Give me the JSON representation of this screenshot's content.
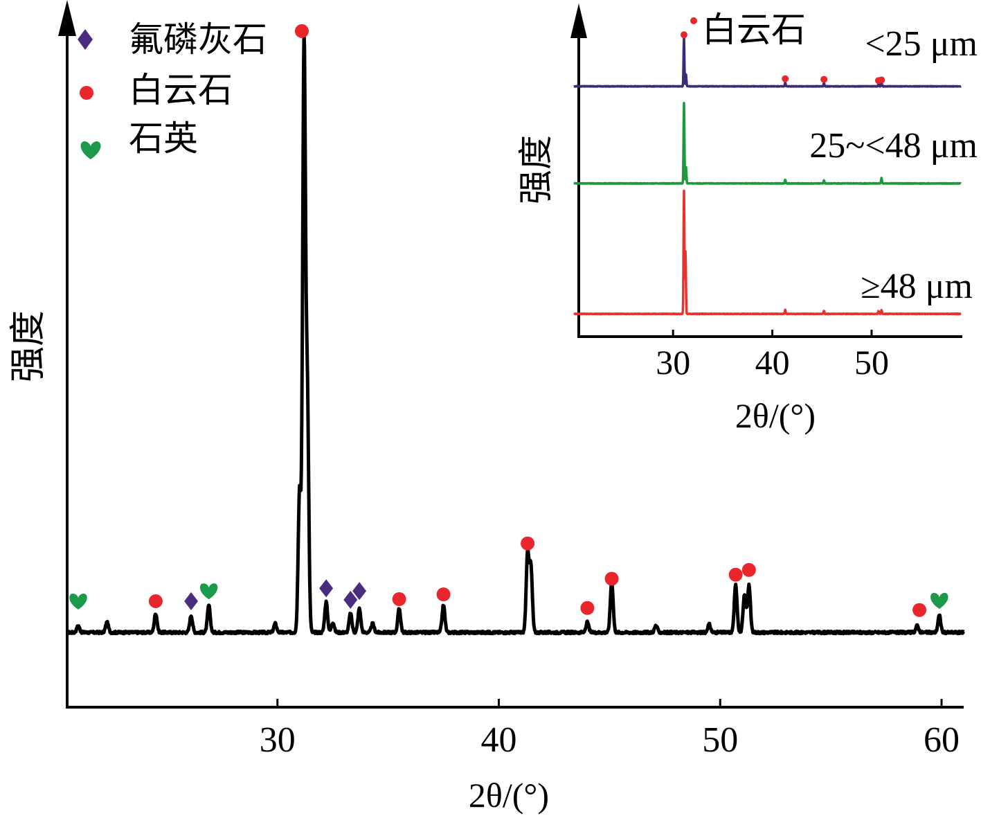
{
  "colors": {
    "axis": "#000000",
    "main_line": "#000000",
    "fluorapatite": "#4b2d7f",
    "dolomite": "#e8262c",
    "quartz": "#1a9a4a",
    "inset_lt25": "#3c2a7a",
    "inset_25_48": "#1a9a3a",
    "inset_ge48": "#e8322c"
  },
  "chart_data": [
    {
      "type": "line",
      "xlabel": "2θ/(°)",
      "ylabel": "强度",
      "xlim": [
        20.5,
        61
      ],
      "ylim": [
        0,
        100
      ],
      "x_ticks": [
        30,
        40,
        50,
        60
      ],
      "x_tick_labels": [
        "30",
        "40",
        "50",
        "60"
      ],
      "legend_position": "top-left",
      "legend": [
        {
          "name": "氟磷灰石",
          "marker": "diamond",
          "color": "#4b2d7f",
          "icon": "diamond-icon"
        },
        {
          "name": "白云石",
          "marker": "circle",
          "color": "#e8262c",
          "icon": "circle-icon"
        },
        {
          "name": "石英",
          "marker": "heart",
          "color": "#1a9a4a",
          "icon": "heart-icon"
        }
      ],
      "baseline": 11,
      "peaks": [
        {
          "x": 21.0,
          "y": 12.0
        },
        {
          "x": 22.3,
          "y": 12.5
        },
        {
          "x": 24.5,
          "y": 13.8
        },
        {
          "x": 26.1,
          "y": 13.5
        },
        {
          "x": 26.9,
          "y": 15.0
        },
        {
          "x": 29.9,
          "y": 12.3
        },
        {
          "x": 31.0,
          "y": 32.0
        },
        {
          "x": 31.2,
          "y": 97.0
        },
        {
          "x": 31.35,
          "y": 45.0
        },
        {
          "x": 32.2,
          "y": 15.5
        },
        {
          "x": 32.5,
          "y": 12.5
        },
        {
          "x": 33.3,
          "y": 13.8
        },
        {
          "x": 33.7,
          "y": 14.5
        },
        {
          "x": 34.3,
          "y": 12.3
        },
        {
          "x": 35.5,
          "y": 14.5
        },
        {
          "x": 37.5,
          "y": 15.0
        },
        {
          "x": 41.3,
          "y": 22.5
        },
        {
          "x": 41.45,
          "y": 20.5
        },
        {
          "x": 44.0,
          "y": 12.5
        },
        {
          "x": 45.1,
          "y": 18.5
        },
        {
          "x": 47.1,
          "y": 12.0
        },
        {
          "x": 49.5,
          "y": 12.2
        },
        {
          "x": 50.7,
          "y": 18.0
        },
        {
          "x": 51.1,
          "y": 16.5
        },
        {
          "x": 51.3,
          "y": 18.0
        },
        {
          "x": 58.9,
          "y": 12.0
        },
        {
          "x": 59.9,
          "y": 13.5
        }
      ],
      "markers": [
        {
          "phase": "石英",
          "shape": "heart",
          "x": 21.0,
          "y": 15.5
        },
        {
          "phase": "白云石",
          "shape": "circle",
          "x": 24.5,
          "y": 15.6
        },
        {
          "phase": "氟磷灰石",
          "shape": "diamond",
          "x": 26.1,
          "y": 15.6
        },
        {
          "phase": "石英",
          "shape": "heart",
          "x": 26.9,
          "y": 17.0
        },
        {
          "phase": "白云石",
          "shape": "circle",
          "x": 31.1,
          "y": 99.5
        },
        {
          "phase": "氟磷灰石",
          "shape": "diamond",
          "x": 32.2,
          "y": 17.5
        },
        {
          "phase": "氟磷灰石",
          "shape": "diamond",
          "x": 33.3,
          "y": 15.8
        },
        {
          "phase": "氟磷灰石",
          "shape": "diamond",
          "x": 33.7,
          "y": 17.1
        },
        {
          "phase": "白云石",
          "shape": "circle",
          "x": 35.5,
          "y": 15.9
        },
        {
          "phase": "白云石",
          "shape": "circle",
          "x": 37.5,
          "y": 16.6
        },
        {
          "phase": "白云石",
          "shape": "circle",
          "x": 41.3,
          "y": 24.1
        },
        {
          "phase": "白云石",
          "shape": "circle",
          "x": 44.0,
          "y": 14.6
        },
        {
          "phase": "白云石",
          "shape": "circle",
          "x": 45.1,
          "y": 18.9
        },
        {
          "phase": "白云石",
          "shape": "circle",
          "x": 50.7,
          "y": 19.5
        },
        {
          "phase": "白云石",
          "shape": "circle",
          "x": 51.3,
          "y": 20.2
        },
        {
          "phase": "白云石",
          "shape": "circle",
          "x": 59.0,
          "y": 14.3
        },
        {
          "phase": "石英",
          "shape": "heart",
          "x": 59.9,
          "y": 15.6
        }
      ]
    },
    {
      "type": "line",
      "title": "",
      "xlabel": "2θ/(°)",
      "ylabel": "强度",
      "xlim": [
        20.5,
        59
      ],
      "ylim": [
        0,
        100
      ],
      "x_ticks": [
        30,
        40,
        50
      ],
      "x_tick_labels": [
        "30",
        "40",
        "50"
      ],
      "series": [
        {
          "name": "<25 μm",
          "label": "<25 μm",
          "color": "#3c2a7a",
          "baseline": 82.5,
          "peaks": [
            {
              "x": 31.1,
              "y": 98.5
            },
            {
              "x": 31.3,
              "y": 86.5
            },
            {
              "x": 41.3,
              "y": 83.8
            },
            {
              "x": 45.2,
              "y": 83.6
            },
            {
              "x": 50.7,
              "y": 83.2
            },
            {
              "x": 51.0,
              "y": 84.0
            }
          ],
          "markers": [
            {
              "phase": "白云石",
              "x": 31.1,
              "y": 99.5
            },
            {
              "phase": "白云石",
              "x": 41.3,
              "y": 85.0
            },
            {
              "phase": "白云石",
              "x": 45.2,
              "y": 84.8
            },
            {
              "phase": "白云石",
              "x": 50.7,
              "y": 84.4
            },
            {
              "phase": "白云石",
              "x": 51.0,
              "y": 84.6
            }
          ]
        },
        {
          "name": "25~<48 μm",
          "label": "25~<48 μm",
          "color": "#1a9a3a",
          "baseline": 50.5,
          "peaks": [
            {
              "x": 31.1,
              "y": 77.0
            },
            {
              "x": 31.3,
              "y": 56.0
            },
            {
              "x": 41.3,
              "y": 51.8
            },
            {
              "x": 45.2,
              "y": 51.5
            },
            {
              "x": 51.0,
              "y": 52.3
            }
          ]
        },
        {
          "name": "≥48 μm",
          "label": "≥48 μm",
          "color": "#e8322c",
          "baseline": 7.5,
          "peaks": [
            {
              "x": 31.1,
              "y": 48.0
            },
            {
              "x": 31.25,
              "y": 28.0
            },
            {
              "x": 41.3,
              "y": 8.8
            },
            {
              "x": 45.2,
              "y": 8.5
            },
            {
              "x": 50.7,
              "y": 8.4
            },
            {
              "x": 51.0,
              "y": 8.8
            }
          ]
        }
      ],
      "annotations": [
        {
          "text": "白云石",
          "marker": "circle",
          "color": "#e8262c"
        }
      ]
    }
  ]
}
